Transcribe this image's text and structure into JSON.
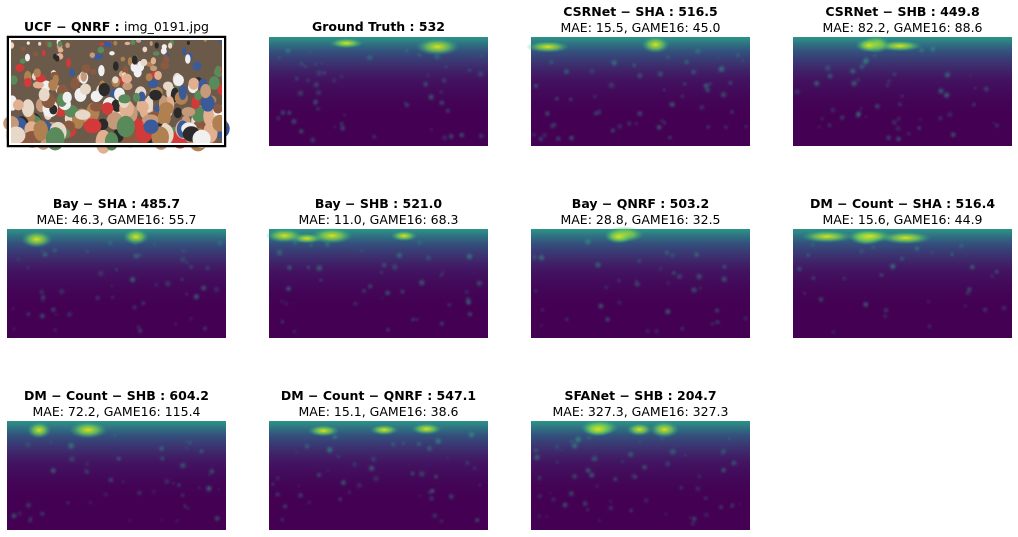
{
  "panels": [
    {
      "title": "UCF − QNRF :",
      "file": "img_0191.jpg"
    },
    {
      "title": "Ground Truth : 532"
    },
    {
      "title": "CSRNet − SHA : 516.5",
      "subtitle": "MAE: 15.5, GAME16: 45.0"
    },
    {
      "title": "CSRNet − SHB : 449.8",
      "subtitle": "MAE: 82.2, GAME16: 88.6"
    },
    {
      "title": "Bay − SHA : 485.7",
      "subtitle": "MAE: 46.3, GAME16: 55.7"
    },
    {
      "title": "Bay − SHB : 521.0",
      "subtitle": "MAE: 11.0, GAME16: 68.3"
    },
    {
      "title": "Bay − QNRF : 503.2",
      "subtitle": "MAE: 28.8, GAME16: 32.5"
    },
    {
      "title": "DM − Count − SHA : 516.4",
      "subtitle": "MAE: 15.6, GAME16: 44.9"
    },
    {
      "title": "DM − Count − SHB : 604.2",
      "subtitle": "MAE: 72.2, GAME16: 115.4"
    },
    {
      "title": "DM − Count − QNRF : 547.1",
      "subtitle": "MAE: 15.1, GAME16: 38.6"
    },
    {
      "title": "SFANet − SHB : 204.7",
      "subtitle": "MAE: 327.3, GAME16: 327.3"
    }
  ]
}
